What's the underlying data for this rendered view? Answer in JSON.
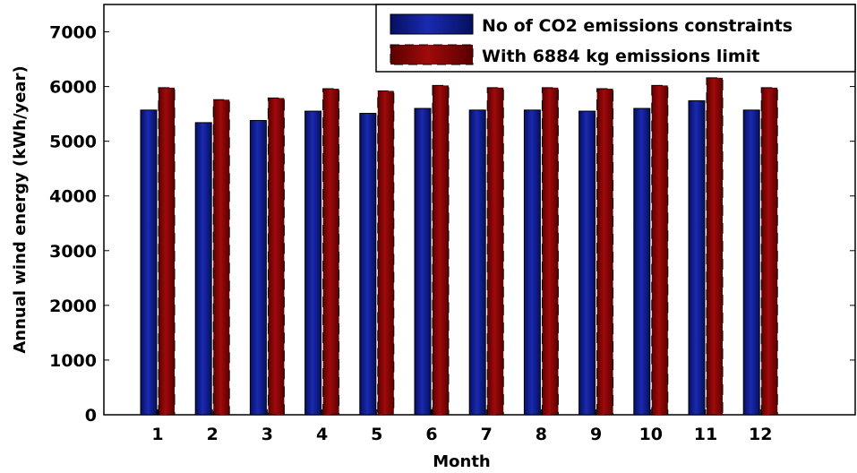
{
  "chart_data": {
    "type": "bar",
    "title": "",
    "xlabel": "Month",
    "ylabel": "Annual wind energy (kWh/year)",
    "categories": [
      "1",
      "2",
      "3",
      "4",
      "5",
      "6",
      "7",
      "8",
      "9",
      "10",
      "11",
      "12"
    ],
    "series": [
      {
        "name": "No of CO2 emissions constraints",
        "color": "#0a1a8c",
        "values": [
          5570,
          5340,
          5380,
          5550,
          5510,
          5600,
          5570,
          5570,
          5550,
          5600,
          5740,
          5570
        ]
      },
      {
        "name": "With 6884 kg emissions limit",
        "color": "#8b0000",
        "values": [
          5980,
          5760,
          5790,
          5960,
          5920,
          6020,
          5980,
          5980,
          5960,
          6020,
          6160,
          5980
        ]
      }
    ],
    "ylim": [
      0,
      7500
    ],
    "yticks": [
      0,
      1000,
      2000,
      3000,
      4000,
      5000,
      6000,
      7000
    ],
    "grid": false,
    "legend_position": "top-right"
  }
}
